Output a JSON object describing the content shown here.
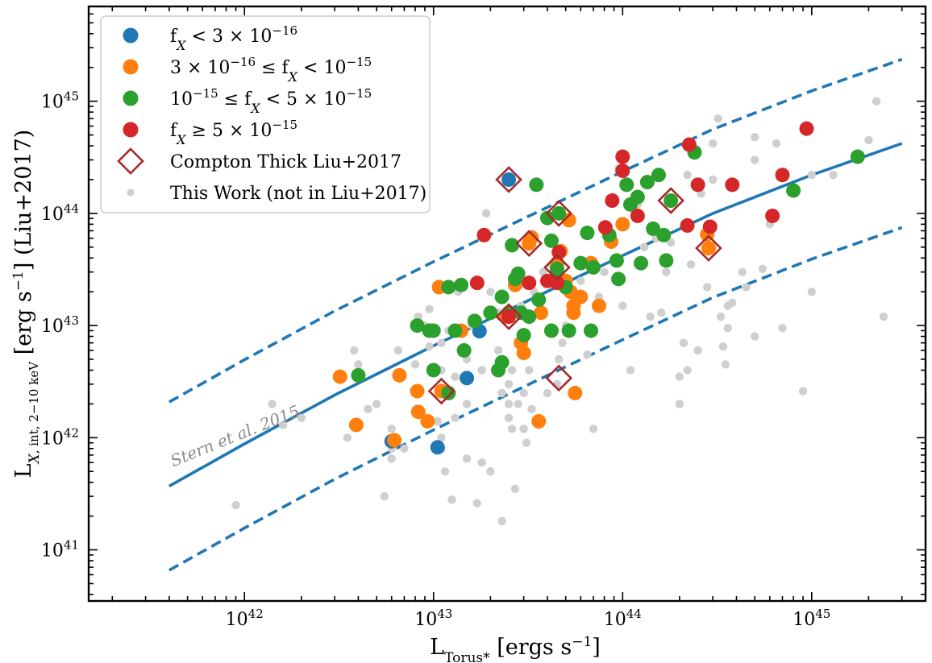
{
  "chart_data": {
    "type": "scatter",
    "xlabel": "L_{Torus*} [ergs s^{-1}]",
    "ylabel": "L_{X, int, 2-10 keV} [erg s^{-1}] (Liu+2017)",
    "xscale": "log",
    "yscale": "log",
    "xlim": [
      1.5e+41,
      4e+45
    ],
    "ylim": [
      3.5e+40,
      7e+45
    ],
    "x_tick_labels": [
      {
        "value": 1e+42,
        "mant": "10",
        "exp": "42"
      },
      {
        "value": 1e+43,
        "mant": "10",
        "exp": "43"
      },
      {
        "value": 1e+44,
        "mant": "10",
        "exp": "44"
      },
      {
        "value": 1e+45,
        "mant": "10",
        "exp": "45"
      }
    ],
    "y_tick_labels": [
      {
        "value": 1e+41,
        "mant": "10",
        "exp": "41"
      },
      {
        "value": 1e+42,
        "mant": "10",
        "exp": "42"
      },
      {
        "value": 1e+43,
        "mant": "10",
        "exp": "43"
      },
      {
        "value": 1e+44,
        "mant": "10",
        "exp": "44"
      },
      {
        "value": 1e+45,
        "mant": "10",
        "exp": "45"
      }
    ],
    "legend_position": "top-left",
    "annotation": "Stern et al. 2015",
    "relation": {
      "name": "Stern et al. 2015",
      "color": "#1f77b4",
      "x": [
        4e+41,
        1e+42,
        3e+42,
        1e+43,
        3e+43,
        1e+44,
        3e+44,
        1e+45,
        3e+45
      ],
      "y": [
        3.7e+41,
        8.8e+41,
        2.4e+42,
        6.6e+42,
        1.6e+43,
        4.2e+43,
        1e+44,
        2.2e+44,
        4.2e+44
      ],
      "scatter_dex": 0.75
    },
    "series": [
      {
        "name": "This Work (not in Liu+2017)",
        "marker": "small-dot",
        "color": "#cfcfcf",
        "points": [
          [
            9e+41,
            2.5e+41
          ],
          [
            1.6e+42,
            1.3e+42
          ],
          [
            1.4e+42,
            2e+42
          ],
          [
            2e+42,
            1.5e+42
          ],
          [
            3.5e+42,
            1e+42
          ],
          [
            3.8e+42,
            6e+42
          ],
          [
            4e+42,
            4.5e+42
          ],
          [
            4.5e+42,
            1.8e+42
          ],
          [
            5e+42,
            2e+42
          ],
          [
            5.5e+42,
            3e+41
          ],
          [
            6e+42,
            6.5e+41
          ],
          [
            6e+42,
            8e+41
          ],
          [
            6e+42,
            1.2e+42
          ],
          [
            6.5e+42,
            6e+42
          ],
          [
            7e+42,
            8e+41
          ],
          [
            8e+42,
            4.5e+42
          ],
          [
            8.3e+42,
            1.2e+43
          ],
          [
            9e+42,
            1e+43
          ],
          [
            9.5e+42,
            6.5e+42
          ],
          [
            9.5e+42,
            1.4e+43
          ],
          [
            1.05e+43,
            1.4e+42
          ],
          [
            1.1e+43,
            8e+41
          ],
          [
            1.1e+43,
            1e+42
          ],
          [
            1.1e+43,
            4e+42
          ],
          [
            1.1e+43,
            7e+42
          ],
          [
            1.1e+43,
            2.2e+43
          ],
          [
            1.15e+43,
            5e+41
          ],
          [
            1.2e+43,
            9e+42
          ],
          [
            1.25e+43,
            2.8e+41
          ],
          [
            1.3e+43,
            1.5e+42
          ],
          [
            1.3e+43,
            3.5e+42
          ],
          [
            1.35e+43,
            2e+43
          ],
          [
            1.4e+43,
            6e+42
          ],
          [
            1.5e+43,
            2e+42
          ],
          [
            1.5e+43,
            5e+42
          ],
          [
            1.5e+43,
            6.5e+41
          ],
          [
            1.6e+43,
            1e+43
          ],
          [
            1.7e+43,
            2.6e+41
          ],
          [
            1.8e+43,
            4e+42
          ],
          [
            1.8e+43,
            6e+41
          ],
          [
            1.9e+43,
            1e+44
          ],
          [
            2e+43,
            5e+41
          ],
          [
            2e+43,
            2e+43
          ],
          [
            2.2e+43,
            1.3e+43
          ],
          [
            2.2e+43,
            6e+42
          ],
          [
            2.3e+43,
            1.8e+41
          ],
          [
            2.3e+43,
            2.5e+42
          ],
          [
            2.5e+43,
            1.5e+42
          ],
          [
            2.5e+43,
            2e+42
          ],
          [
            2.5e+43,
            3e+42
          ],
          [
            2.6e+43,
            4e+42
          ],
          [
            2.6e+43,
            1.2e+42
          ],
          [
            2.7e+43,
            3.5e+41
          ],
          [
            2.8e+43,
            2e+42
          ],
          [
            2.9e+43,
            1.5e+43
          ],
          [
            3e+43,
            1.2e+42
          ],
          [
            3e+43,
            2.5e+42
          ],
          [
            3.1e+43,
            9e+41
          ],
          [
            3.2e+43,
            4e+42
          ],
          [
            3.3e+43,
            1.8e+42
          ],
          [
            3.4e+43,
            2e+43
          ],
          [
            3.6e+43,
            1.3e+42
          ],
          [
            3.8e+43,
            3e+43
          ],
          [
            4e+43,
            2.5e+42
          ],
          [
            4.2e+43,
            3.5e+43
          ],
          [
            4.5e+43,
            3e+42
          ],
          [
            4.6e+43,
            5e+42
          ],
          [
            4.8e+43,
            7e+42
          ],
          [
            5e+43,
            1e+43
          ],
          [
            5.3e+43,
            1.5e+43
          ],
          [
            6e+43,
            2.5e+43
          ],
          [
            6.5e+43,
            5.5e+42
          ],
          [
            7e+43,
            1.2e+42
          ],
          [
            7.5e+43,
            1.8e+43
          ],
          [
            8e+43,
            3e+43
          ],
          [
            9e+43,
            1.4e+44
          ],
          [
            9.5e+43,
            2.5e+44
          ],
          [
            1e+44,
            1.5e+43
          ],
          [
            1.1e+44,
            4e+42
          ],
          [
            1.2e+44,
            1.2e+44
          ],
          [
            1.3e+44,
            5e+43
          ],
          [
            1.4e+44,
            1.2e+43
          ],
          [
            1.5e+44,
            6e+43
          ],
          [
            1.6e+44,
            1.3e+43
          ],
          [
            1.7e+44,
            3e+43
          ],
          [
            1.8e+44,
            5.5e+43
          ],
          [
            2e+44,
            2e+42
          ],
          [
            2e+44,
            3.5e+42
          ],
          [
            2.1e+44,
            7e+42
          ],
          [
            2.2e+44,
            4e+42
          ],
          [
            2.2e+44,
            2.2e+44
          ],
          [
            2.3e+44,
            3.5e+43
          ],
          [
            2.5e+44,
            6e+42
          ],
          [
            2.6e+44,
            1.5e+44
          ],
          [
            2.8e+44,
            2.2e+43
          ],
          [
            3e+44,
            4.2e+44
          ],
          [
            3e+44,
            5e+43
          ],
          [
            3e+44,
            2e+44
          ],
          [
            3.2e+44,
            7e+44
          ],
          [
            3.3e+44,
            1.2e+43
          ],
          [
            3.4e+44,
            6.5e+42
          ],
          [
            3.5e+44,
            4.5e+42
          ],
          [
            3.6e+44,
            1.5e+43
          ],
          [
            3.6e+44,
            9.5e+42
          ],
          [
            3.8e+44,
            1.6e+43
          ],
          [
            4.3e+44,
            3e+43
          ],
          [
            4.5e+44,
            2.2e+43
          ],
          [
            5e+44,
            4.8e+44
          ],
          [
            5e+44,
            3e+44
          ],
          [
            5e+44,
            8e+42
          ],
          [
            5.5e+44,
            3.2e+43
          ],
          [
            6e+44,
            8e+43
          ],
          [
            6.5e+44,
            4.2e+44
          ],
          [
            7e+44,
            9.5e+42
          ],
          [
            8e+44,
            1.5e+44
          ],
          [
            9e+44,
            2.6e+42
          ],
          [
            1e+45,
            2e+43
          ],
          [
            1e+45,
            2.2e+44
          ],
          [
            1.3e+45,
            2.2e+44
          ],
          [
            2e+45,
            4.5e+44
          ],
          [
            2.2e+45,
            1e+45
          ],
          [
            2.4e+45,
            1.2e+43
          ]
        ]
      },
      {
        "name": "f_X < 3 × 10^{-16}",
        "marker": "circle",
        "color": "#1f77b4",
        "points": [
          [
            6e+42,
            9.3e+41
          ],
          [
            1.05e+43,
            8.2e+41
          ],
          [
            1.5e+43,
            3.4e+42
          ],
          [
            1.75e+43,
            8.9e+42
          ],
          [
            2.5e+43,
            2e+44
          ]
        ]
      },
      {
        "name": "3 × 10^{-16} ≤ f_X < 10^{-15}",
        "marker": "circle",
        "color": "#ff7f0e",
        "points": [
          [
            3.2e+42,
            3.5e+42
          ],
          [
            3.9e+42,
            1.3e+42
          ],
          [
            6.2e+42,
            9.5e+41
          ],
          [
            6.6e+42,
            3.6e+42
          ],
          [
            8.2e+42,
            2.6e+42
          ],
          [
            8.3e+42,
            1.7e+42
          ],
          [
            9.3e+42,
            1.4e+42
          ],
          [
            1.07e+43,
            2.2e+43
          ],
          [
            1.1e+43,
            2.6e+42
          ],
          [
            1.4e+43,
            9e+42
          ],
          [
            2.4e+43,
            1.2e+43
          ],
          [
            2.7e+43,
            2.3e+43
          ],
          [
            2.9e+43,
            7e+42
          ],
          [
            3e+43,
            5.7e+42
          ],
          [
            3.2e+43,
            5.4e+43
          ],
          [
            3.3e+43,
            6.1e+43
          ],
          [
            3.6e+43,
            1.4e+42
          ],
          [
            3.7e+43,
            1.3e+43
          ],
          [
            4.5e+43,
            3.6e+43
          ],
          [
            4.7e+43,
            4.6e+43
          ],
          [
            5e+43,
            2.5e+43
          ],
          [
            5.2e+43,
            8.7e+43
          ],
          [
            5.3e+43,
            2e+43
          ],
          [
            5.5e+43,
            1.3e+43
          ],
          [
            5.5e+43,
            1.5e+43
          ],
          [
            5.6e+43,
            2.5e+42
          ],
          [
            6e+43,
            1.8e+43
          ],
          [
            6.8e+43,
            3.6e+43
          ],
          [
            7.5e+43,
            1.5e+43
          ],
          [
            8.7e+43,
            5.6e+43
          ],
          [
            1e+44,
            8e+43
          ],
          [
            2.8e+44,
            6.5e+43
          ],
          [
            2.85e+44,
            4.9e+43
          ]
        ]
      },
      {
        "name": "10^{-15} ≤ f_X < 5 × 10^{-15}",
        "marker": "circle",
        "color": "#2ca02c",
        "points": [
          [
            4e+42,
            3.6e+42
          ],
          [
            8.2e+42,
            1e+43
          ],
          [
            9.5e+42,
            9e+42
          ],
          [
            1e+43,
            9e+42
          ],
          [
            1e+43,
            4e+42
          ],
          [
            1.2e+43,
            2.2e+43
          ],
          [
            1.2e+43,
            2.5e+42
          ],
          [
            1.3e+43,
            9e+42
          ],
          [
            1.4e+43,
            2.3e+43
          ],
          [
            1.45e+43,
            6e+42
          ],
          [
            1.65e+43,
            1.1e+43
          ],
          [
            2e+43,
            1.3e+43
          ],
          [
            2.2e+43,
            4e+42
          ],
          [
            2.3e+43,
            4.7e+42
          ],
          [
            2.3e+43,
            1.8e+43
          ],
          [
            2.5e+43,
            1.3e+43
          ],
          [
            2.6e+43,
            5.2e+43
          ],
          [
            2.7e+43,
            2.6e+43
          ],
          [
            2.8e+43,
            2.9e+43
          ],
          [
            2.9e+43,
            1.3e+43
          ],
          [
            3e+43,
            8.2e+42
          ],
          [
            3.2e+43,
            1.2e+43
          ],
          [
            3.5e+43,
            1.8e+44
          ],
          [
            3.6e+43,
            1.7e+43
          ],
          [
            4e+43,
            9.1e+43
          ],
          [
            4.2e+43,
            9e+42
          ],
          [
            4.2e+43,
            5.7e+43
          ],
          [
            4.5e+43,
            3.2e+43
          ],
          [
            4.6e+43,
            1e+44
          ],
          [
            5e+43,
            2.2e+43
          ],
          [
            5.2e+43,
            9e+42
          ],
          [
            6e+43,
            3.6e+43
          ],
          [
            6.5e+43,
            6.7e+43
          ],
          [
            6.8e+43,
            9e+42
          ],
          [
            7e+43,
            3.3e+43
          ],
          [
            8.5e+43,
            6.4e+43
          ],
          [
            9.3e+43,
            3.8e+43
          ],
          [
            9.5e+43,
            2.6e+43
          ],
          [
            1.05e+44,
            1.8e+44
          ],
          [
            1.1e+44,
            1.2e+44
          ],
          [
            1.2e+44,
            1.4e+44
          ],
          [
            1.25e+44,
            3.6e+43
          ],
          [
            1.35e+44,
            1.9e+44
          ],
          [
            1.45e+44,
            7.3e+43
          ],
          [
            1.55e+44,
            2.2e+44
          ],
          [
            1.65e+44,
            6.4e+43
          ],
          [
            1.7e+44,
            3.8e+43
          ],
          [
            1.8e+44,
            1.3e+44
          ],
          [
            2.4e+44,
            3.5e+44
          ],
          [
            8e+44,
            1.6e+44
          ],
          [
            1.75e+45,
            3.2e+44
          ]
        ]
      },
      {
        "name": "f_X ≥ 5 × 10^{-15}",
        "marker": "circle",
        "color": "#d62728",
        "points": [
          [
            1.85e+43,
            6.4e+43
          ],
          [
            1.7e+43,
            2.4e+43
          ],
          [
            2.5e+43,
            1.2e+43
          ],
          [
            3.2e+43,
            2.4e+43
          ],
          [
            4e+43,
            2.5e+43
          ],
          [
            4.5e+43,
            2.4e+43
          ],
          [
            4.6e+43,
            4.5e+43
          ],
          [
            8.1e+43,
            7.5e+43
          ],
          [
            8.8e+43,
            1.3e+44
          ],
          [
            1e+44,
            3.2e+44
          ],
          [
            1e+44,
            2.4e+44
          ],
          [
            1.2e+44,
            9.5e+43
          ],
          [
            2.2e+44,
            7.8e+43
          ],
          [
            2.25e+44,
            4.1e+44
          ],
          [
            2.5e+44,
            1.8e+44
          ],
          [
            2.9e+44,
            7.6e+43
          ],
          [
            3.8e+44,
            1.8e+44
          ],
          [
            6.2e+44,
            9.5e+43
          ],
          [
            7e+44,
            2.2e+44
          ],
          [
            9.4e+44,
            5.7e+44
          ]
        ]
      },
      {
        "name": "Compton Thick Liu+2017",
        "marker": "open-diamond",
        "color": "#a52a2a",
        "points": [
          [
            2.5e+43,
            2e+44
          ],
          [
            1.1e+43,
            2.6e+42
          ],
          [
            2.5e+43,
            1.2e+43
          ],
          [
            3.2e+43,
            5.4e+43
          ],
          [
            4.5e+43,
            3.3e+43
          ],
          [
            4.6e+43,
            1e+44
          ],
          [
            4.6e+43,
            3.4e+42
          ],
          [
            1.8e+44,
            1.3e+44
          ],
          [
            2.85e+44,
            4.9e+43
          ]
        ]
      }
    ]
  }
}
